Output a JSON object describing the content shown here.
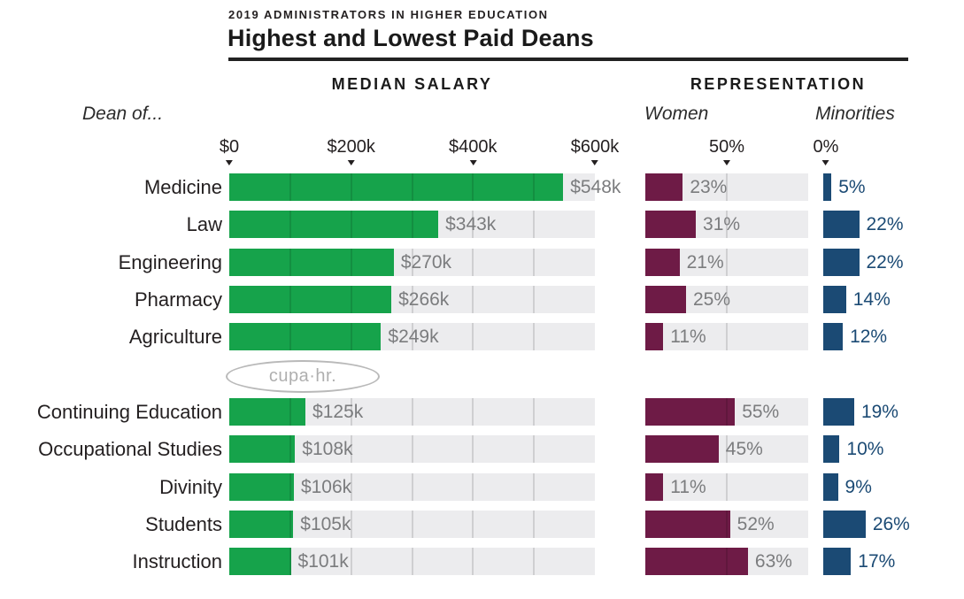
{
  "header": {
    "kicker": "2019 ADMINISTRATORS IN HIGHER EDUCATION",
    "title": "Highest and Lowest Paid Deans"
  },
  "columns": {
    "salary_header": "MEDIAN SALARY",
    "representation_header": "REPRESENTATION",
    "row_label_header": "Dean of...",
    "women_subheader": "Women",
    "minorities_subheader": "Minorities"
  },
  "logo": {
    "text": "cupa·hr."
  },
  "colors": {
    "salary_bar": "#16a34b",
    "women_bar": "#6e1b46",
    "minorities_bar": "#1b4a74",
    "track": "#ececee",
    "value_label_gray": "#7b7c7e",
    "minorities_label": "#1b4a74",
    "text_dark": "#231f20"
  },
  "chart_data": {
    "type": "bar",
    "title": "Highest and Lowest Paid Deans",
    "subtitle": "2019 Administrators in Higher Education",
    "axes": {
      "salary": {
        "ticks": [
          "$0",
          "$200k",
          "$400k",
          "$600k"
        ],
        "tick_values_k": [
          0,
          200,
          400,
          600
        ],
        "max_k": 600,
        "gridline_every_k": 100
      },
      "women": {
        "tick": "50%",
        "tick_value_pct": 50,
        "max_pct": 100
      },
      "minorities": {
        "tick": "0%",
        "tick_value_pct": 0,
        "max_pct": 100
      }
    },
    "legend_position": "column-headers",
    "grid": true,
    "groups": [
      {
        "name": "highest-paid",
        "rows": [
          {
            "label": "Medicine",
            "salary_k": 548,
            "salary_label": "$548k",
            "women_pct": 23,
            "women_label": "23%",
            "minorities_pct": 5,
            "minorities_label": "5%"
          },
          {
            "label": "Law",
            "salary_k": 343,
            "salary_label": "$343k",
            "women_pct": 31,
            "women_label": "31%",
            "minorities_pct": 22,
            "minorities_label": "22%"
          },
          {
            "label": "Engineering",
            "salary_k": 270,
            "salary_label": "$270k",
            "women_pct": 21,
            "women_label": "21%",
            "minorities_pct": 22,
            "minorities_label": "22%"
          },
          {
            "label": "Pharmacy",
            "salary_k": 266,
            "salary_label": "$266k",
            "women_pct": 25,
            "women_label": "25%",
            "minorities_pct": 14,
            "minorities_label": "14%"
          },
          {
            "label": "Agriculture",
            "salary_k": 249,
            "salary_label": "$249k",
            "women_pct": 11,
            "women_label": "11%",
            "minorities_pct": 12,
            "minorities_label": "12%"
          }
        ]
      },
      {
        "name": "lowest-paid",
        "rows": [
          {
            "label": "Continuing Education",
            "salary_k": 125,
            "salary_label": "$125k",
            "women_pct": 55,
            "women_label": "55%",
            "minorities_pct": 19,
            "minorities_label": "19%"
          },
          {
            "label": "Occupational Studies",
            "salary_k": 108,
            "salary_label": "$108k",
            "women_pct": 45,
            "women_label": "45%",
            "minorities_pct": 10,
            "minorities_label": "10%"
          },
          {
            "label": "Divinity",
            "salary_k": 106,
            "salary_label": "$106k",
            "women_pct": 11,
            "women_label": "11%",
            "minorities_pct": 9,
            "minorities_label": "9%"
          },
          {
            "label": "Students",
            "salary_k": 105,
            "salary_label": "$105k",
            "women_pct": 52,
            "women_label": "52%",
            "minorities_pct": 26,
            "minorities_label": "26%"
          },
          {
            "label": "Instruction",
            "salary_k": 101,
            "salary_label": "$101k",
            "women_pct": 63,
            "women_label": "63%",
            "minorities_pct": 17,
            "minorities_label": "17%"
          }
        ]
      }
    ]
  }
}
